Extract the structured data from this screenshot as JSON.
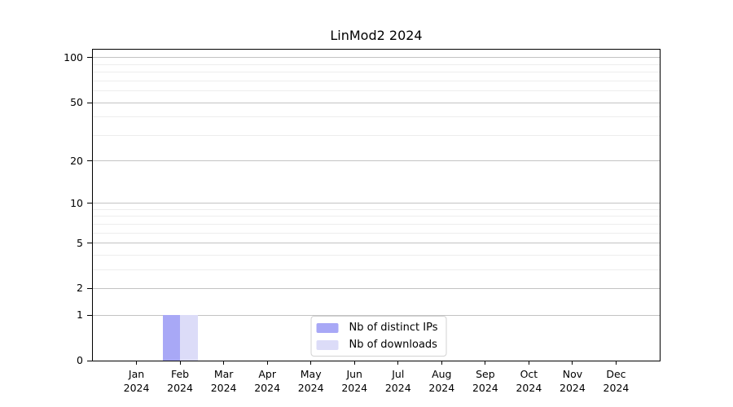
{
  "title": "LinMod2 2024",
  "chart_data": {
    "type": "bar",
    "title": "LinMod2 2024",
    "y_scale": "log10(1+x)",
    "y_top_decades": 2.058,
    "y_ticks": [
      100,
      50,
      20,
      10,
      5,
      2,
      1,
      0
    ],
    "y_minor_gridlines": [
      3,
      4,
      6,
      7,
      8,
      9,
      30,
      40,
      60,
      70,
      80,
      90
    ],
    "x_categories": [
      {
        "month": "Jan",
        "year": "2024"
      },
      {
        "month": "Feb",
        "year": "2024"
      },
      {
        "month": "Mar",
        "year": "2024"
      },
      {
        "month": "Apr",
        "year": "2024"
      },
      {
        "month": "May",
        "year": "2024"
      },
      {
        "month": "Jun",
        "year": "2024"
      },
      {
        "month": "Jul",
        "year": "2024"
      },
      {
        "month": "Aug",
        "year": "2024"
      },
      {
        "month": "Sep",
        "year": "2024"
      },
      {
        "month": "Oct",
        "year": "2024"
      },
      {
        "month": "Nov",
        "year": "2024"
      },
      {
        "month": "Dec",
        "year": "2024"
      }
    ],
    "series": [
      {
        "name": "Nb of distinct IPs",
        "color": "#a8a8f6",
        "values": [
          0,
          1,
          0,
          0,
          0,
          0,
          0,
          0,
          0,
          0,
          0,
          0
        ]
      },
      {
        "name": "Nb of downloads",
        "color": "#dcdcf8",
        "values": [
          0,
          1,
          0,
          0,
          0,
          0,
          0,
          0,
          0,
          0,
          0,
          0
        ]
      }
    ],
    "grid": "horizontal",
    "legend_position": "bottom-center",
    "axis_color": "#000000",
    "major_grid_color": "#c3c3c3",
    "minor_grid_color": "#ededed"
  }
}
